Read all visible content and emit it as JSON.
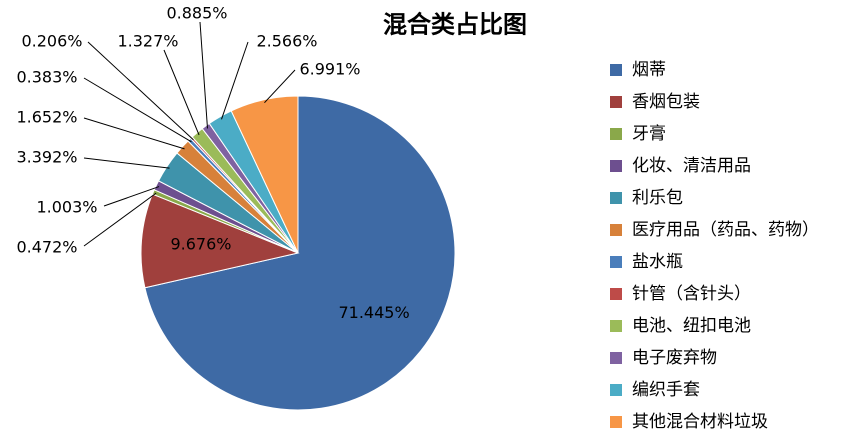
{
  "chart_data": {
    "type": "pie",
    "title": "混合类占比图",
    "categories": [
      "烟蒂",
      "香烟包装",
      "牙膏",
      "化妆、清洁用品",
      "利乐包",
      "医疗用品（药品、药物）",
      "盐水瓶",
      "针管（含针头）",
      "电池、纽扣电池",
      "电子废弃物",
      "编织手套",
      "其他混合材料垃圾"
    ],
    "values": [
      71.445,
      9.676,
      0.472,
      1.003,
      3.392,
      1.652,
      0.383,
      0.206,
      1.327,
      0.885,
      2.566,
      6.991
    ],
    "value_labels": [
      "71.445%",
      "9.676%",
      "0.472%",
      "1.003%",
      "3.392%",
      "1.652%",
      "0.383%",
      "0.206%",
      "1.327%",
      "0.885%",
      "2.566%",
      "6.991%"
    ],
    "colors": [
      "#3e6aa5",
      "#a0403d",
      "#8aa84a",
      "#6d4f8f",
      "#3f93ab",
      "#d7813a",
      "#4a7ebb",
      "#be4b48",
      "#9bbb59",
      "#7f62a1",
      "#4bacc6",
      "#f79646"
    ],
    "legend": "right"
  }
}
